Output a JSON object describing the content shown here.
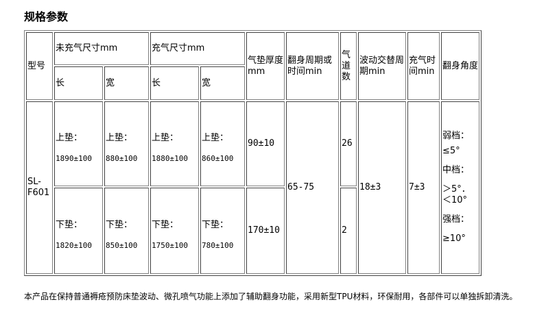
{
  "title": "规格参数",
  "header": {
    "model": "型号",
    "uninflated": "未充气尺寸mm",
    "inflated": "充气尺寸mm",
    "length": "长",
    "width": "宽",
    "thickness": "气垫厚度mm",
    "turn_cycle": "翻身周期或时间min",
    "air_channels": "气道数",
    "wave_cycle": "波动交替周期min",
    "inflate_time": "充气时间min",
    "turn_angle": "翻身角度"
  },
  "row": {
    "model": "SL-F601",
    "upper": {
      "label": "上垫：",
      "u_len": "1890±100",
      "u_wid": "880±100",
      "i_len": "1880±100",
      "i_wid": "860±100",
      "thickness": "90±10",
      "channels": "26"
    },
    "lower": {
      "label": "下垫：",
      "u_len": "1820±100",
      "u_wid": "850±100",
      "i_len": "1750±100",
      "i_wid": "780±100",
      "thickness": "170±10",
      "channels": "2"
    },
    "turn_cycle": "65-75",
    "wave_cycle": "18±3",
    "inflate_time": "7±3",
    "angles": {
      "weak_label": "弱档：",
      "weak": "≤5°",
      "mid_label": "中档：",
      "mid": "＞5°．＜10°",
      "strong_label": "强档：",
      "strong": "≥10°"
    }
  },
  "note": "本产品在保持普通褥疮预防床垫波动、微孔喷气功能上添加了辅助翻身功能，采用新型TPU材料，环保耐用，各部件可以单独拆卸清洗。"
}
